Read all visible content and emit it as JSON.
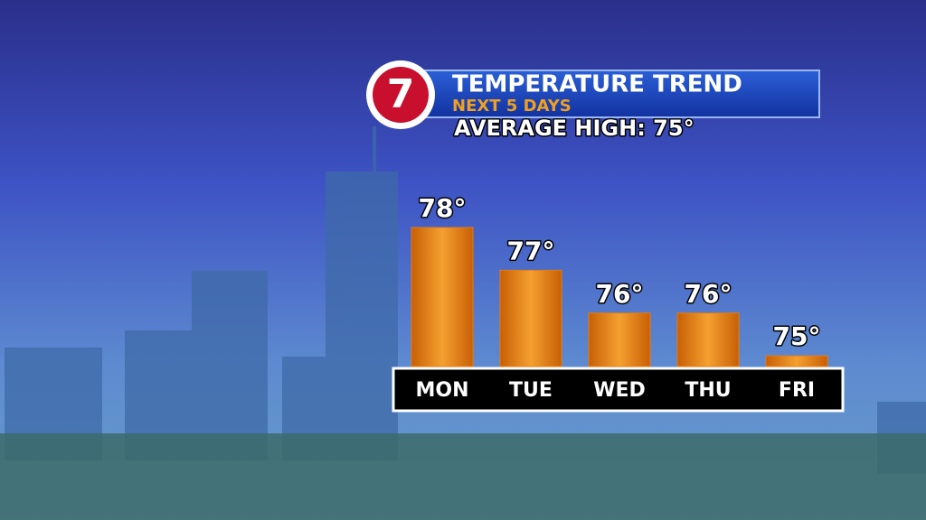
{
  "chart_data": {
    "type": "bar",
    "logo_text": "7",
    "title": "TEMPERATURE TREND",
    "subtitle": "NEXT 5 DAYS",
    "annotation": "AVERAGE HIGH: 75°",
    "categories": [
      "MON",
      "TUE",
      "WED",
      "THU",
      "FRI"
    ],
    "values": [
      78,
      77,
      76,
      76,
      75
    ],
    "value_labels": [
      "78°",
      "77°",
      "76°",
      "76°",
      "75°"
    ],
    "color": "#e67a10",
    "ylim": [
      74.75,
      78
    ]
  }
}
